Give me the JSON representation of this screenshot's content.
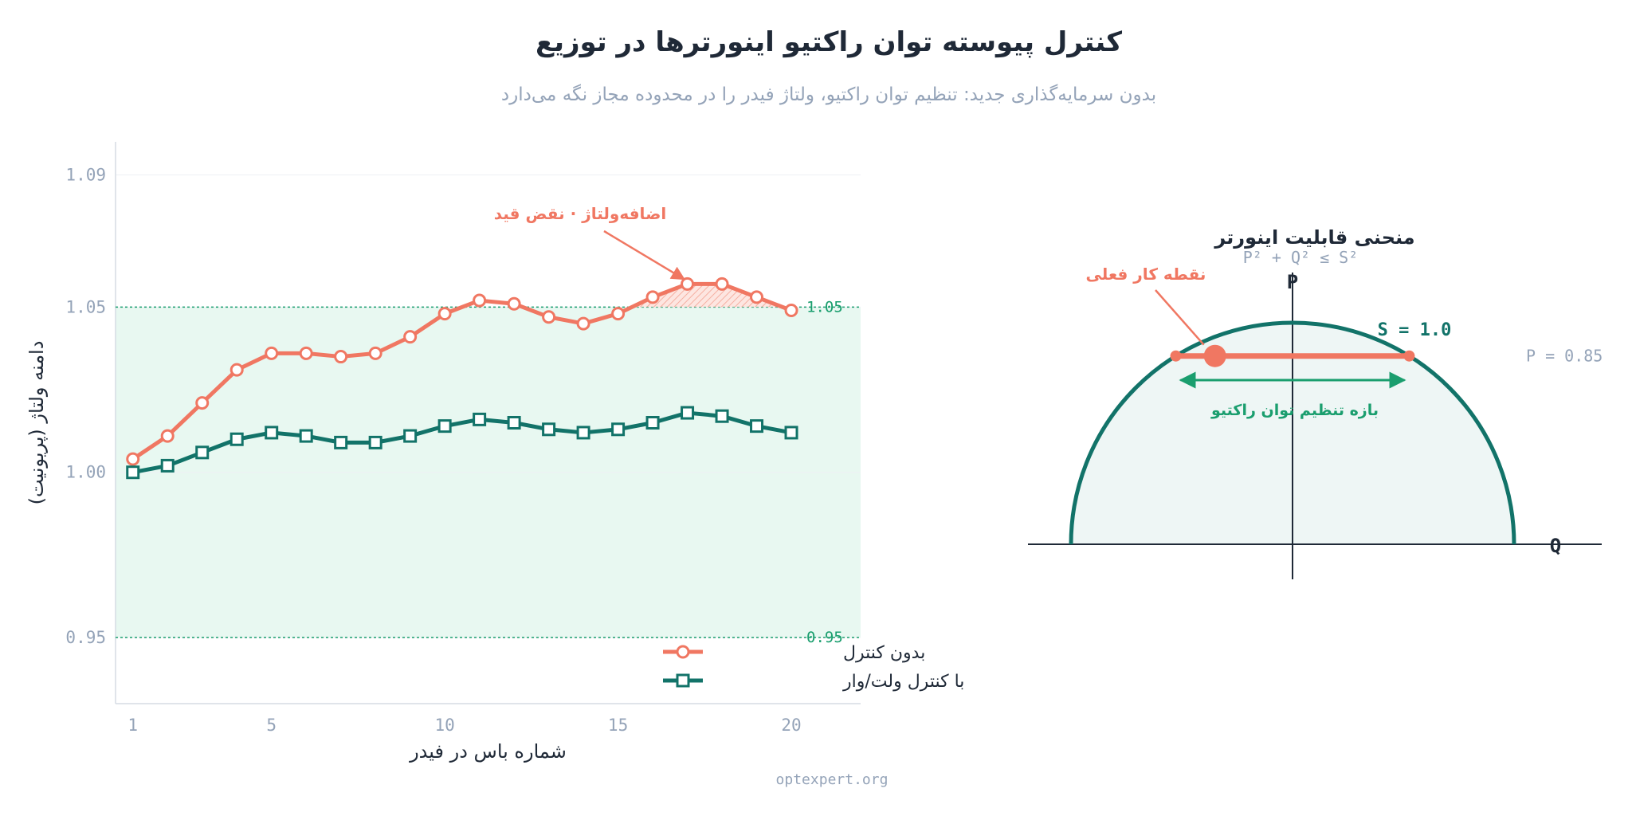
{
  "header": {
    "title": "کنترل پیوسته توان راکتیو اینورترها در توزیع",
    "subtitle": "بدون سرمایه‌گذاری جدید: تنظیم توان راکتیو، ولتاژ فیدر را در محدوده مجاز نگه می‌دارد"
  },
  "footer": {
    "source": "optexpert.org"
  },
  "colors": {
    "uncontrolled": "#f07762",
    "controlled": "#127369",
    "band": "#e6f7ef",
    "limit": "#1a9e6e",
    "axis": "#94a3b8",
    "text": "#1f2937"
  },
  "chart_data": [
    {
      "type": "line",
      "xlabel": "شماره باس در فیدر",
      "ylabel": "دامنه ولتاژ (پریونیت)",
      "xlim": [
        0.5,
        22
      ],
      "ylim": [
        0.93,
        1.1
      ],
      "x_ticks": [
        1,
        5,
        10,
        15,
        20
      ],
      "y_ticks": [
        0.95,
        1.0,
        1.05,
        1.09
      ],
      "y_tick_labels": [
        "0.95",
        "1.00",
        "1.05",
        "1.09"
      ],
      "limits": {
        "lower": 0.95,
        "upper": 1.05,
        "lower_label": "0.95",
        "upper_label": "1.05"
      },
      "legend_position": "bottom-right",
      "x": [
        1,
        2,
        3,
        4,
        5,
        6,
        7,
        8,
        9,
        10,
        11,
        12,
        13,
        14,
        15,
        16,
        17,
        18,
        19,
        20
      ],
      "series": [
        {
          "name": "بدون کنترل",
          "marker": "circle",
          "values": [
            1.004,
            1.011,
            1.021,
            1.031,
            1.036,
            1.036,
            1.035,
            1.036,
            1.041,
            1.048,
            1.052,
            1.051,
            1.047,
            1.045,
            1.048,
            1.053,
            1.057,
            1.057,
            1.053,
            1.049
          ]
        },
        {
          "name": "با کنترل ولت/وار",
          "marker": "square",
          "values": [
            1.0,
            1.002,
            1.006,
            1.01,
            1.012,
            1.011,
            1.009,
            1.009,
            1.011,
            1.014,
            1.016,
            1.015,
            1.013,
            1.012,
            1.013,
            1.015,
            1.018,
            1.017,
            1.014,
            1.012
          ]
        }
      ],
      "annotation": {
        "text": "اضافه‌ولتاژ · نقض قید",
        "target_x": 17,
        "target_y": 1.057
      }
    },
    {
      "type": "diagram",
      "title": "منحنی قابلیت اینورتر",
      "subtitle": "P² + Q² ≤ S²",
      "axis_p_label": "P",
      "axis_q_label": "Q",
      "s_label": "S = 1.0",
      "s_value": 1.0,
      "p_operating": 0.85,
      "p_label": "P = 0.85",
      "q_operating": -0.35,
      "operating_label": "نقطه کار فعلی",
      "range_label": "بازه تنظیم توان راکتیو"
    }
  ]
}
